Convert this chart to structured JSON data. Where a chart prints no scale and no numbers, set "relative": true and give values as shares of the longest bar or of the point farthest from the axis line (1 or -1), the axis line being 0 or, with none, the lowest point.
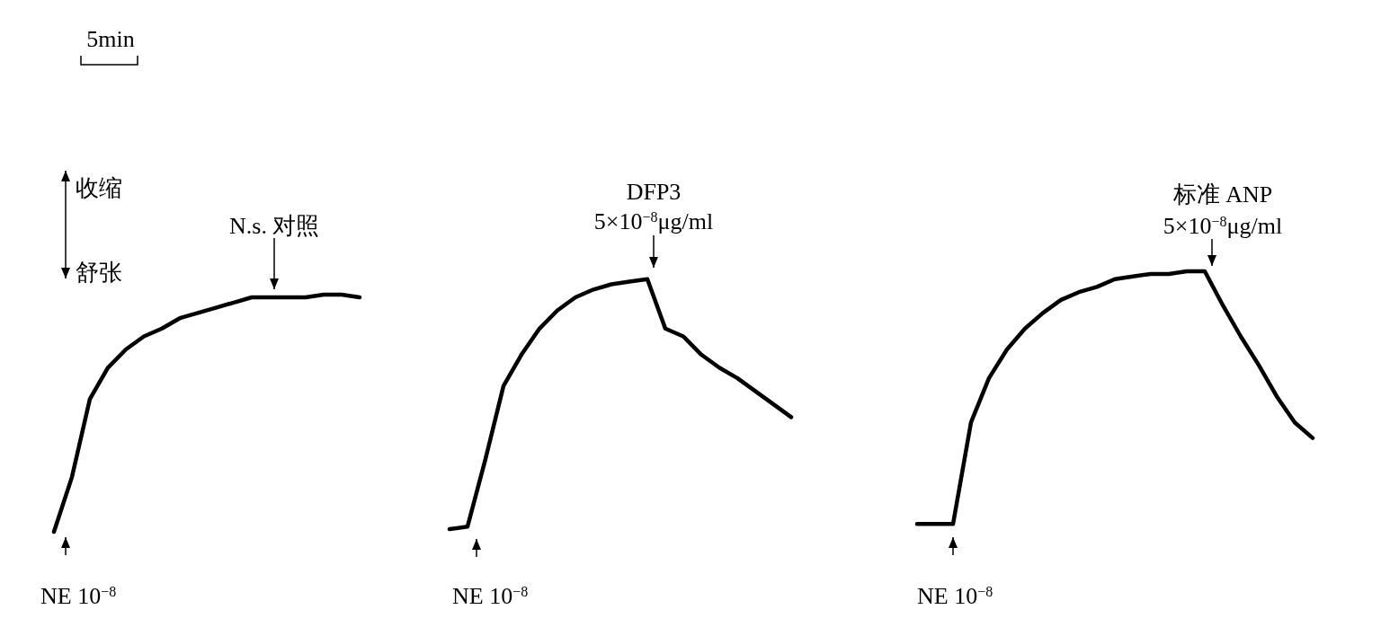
{
  "chart_data": {
    "type": "line",
    "relative": true,
    "categories": [
      null,
      null,
      null,
      null,
      null,
      null,
      null,
      null,
      null,
      null,
      null,
      null,
      null,
      null,
      null,
      null,
      null,
      null,
      null,
      null,
      null,
      null,
      null,
      null,
      null,
      null,
      null,
      null,
      null,
      null,
      null,
      null,
      null,
      null,
      null,
      null,
      null,
      null,
      null,
      null,
      null,
      null,
      null,
      null,
      null,
      null,
      null,
      null,
      null,
      null,
      null,
      null,
      null,
      null,
      null,
      null,
      null,
      null,
      null,
      null,
      null,
      null,
      null,
      null,
      null,
      null,
      null,
      null,
      null,
      null,
      null,
      null,
      null,
      null
    ],
    "series": [
      {
        "color": "#000000",
        "values": [
          null,
          0,
          0.21,
          0.51,
          0.63,
          0.7,
          0.75,
          0.78,
          0.82,
          0.84,
          0.86,
          0.88,
          0.9,
          0.9,
          0.9,
          0.9,
          0.91,
          0.91,
          0.9,
          null,
          null,
          null,
          null,
          null,
          null,
          null,
          null,
          null,
          null,
          null,
          null,
          null,
          null,
          null,
          null,
          null,
          null,
          null,
          null,
          null,
          null,
          null,
          null,
          null,
          null,
          null,
          null,
          null,
          null,
          null,
          null,
          null,
          null,
          null,
          null,
          null,
          null,
          null,
          null,
          null,
          null,
          null,
          null,
          null,
          null,
          null,
          null,
          null,
          null,
          null,
          null,
          null,
          null,
          null
        ]
      },
      {
        "color": "#000000",
        "values": [
          null,
          null,
          null,
          null,
          null,
          null,
          null,
          null,
          null,
          null,
          null,
          null,
          null,
          null,
          null,
          null,
          null,
          null,
          null,
          null,
          null,
          null,
          null,
          0.01,
          0.02,
          0.28,
          0.56,
          0.68,
          0.78,
          0.85,
          0.9,
          0.93,
          0.95,
          0.96,
          0.97,
          0.78,
          0.75,
          0.68,
          0.63,
          0.59,
          0.54,
          0.49,
          0.44,
          null,
          null,
          null,
          null,
          null,
          null,
          null,
          null,
          null,
          null,
          null,
          null,
          null,
          null,
          null,
          null,
          null,
          null,
          null,
          null,
          null,
          null,
          null,
          null,
          null,
          null,
          null,
          null,
          null,
          null,
          null
        ]
      },
      {
        "color": "#000000",
        "values": [
          null,
          null,
          null,
          null,
          null,
          null,
          null,
          null,
          null,
          null,
          null,
          null,
          null,
          null,
          null,
          null,
          null,
          null,
          null,
          null,
          null,
          null,
          null,
          null,
          null,
          null,
          null,
          null,
          null,
          null,
          null,
          null,
          null,
          null,
          null,
          null,
          null,
          null,
          null,
          null,
          null,
          null,
          null,
          null,
          null,
          null,
          null,
          null,
          null,
          0.03,
          0.03,
          0.03,
          0.42,
          0.59,
          0.7,
          0.78,
          0.84,
          0.89,
          0.92,
          0.94,
          0.97,
          0.98,
          0.99,
          0.99,
          1.0,
          1.0,
          0.87,
          0.75,
          0.64,
          0.52,
          0.42,
          0.36,
          null,
          null
        ]
      }
    ],
    "annotations": [
      "5min",
      "收缩",
      "舒张",
      "N.s.  对照",
      "DFP3",
      "5×10$^{−8}$μg/ml",
      "标准 ANP",
      "5×10$^{−8}$μg/ml",
      "NE 10$^{−8}$",
      "NE 10$^{−8}$",
      "NE 10$^{−8}$"
    ]
  }
}
